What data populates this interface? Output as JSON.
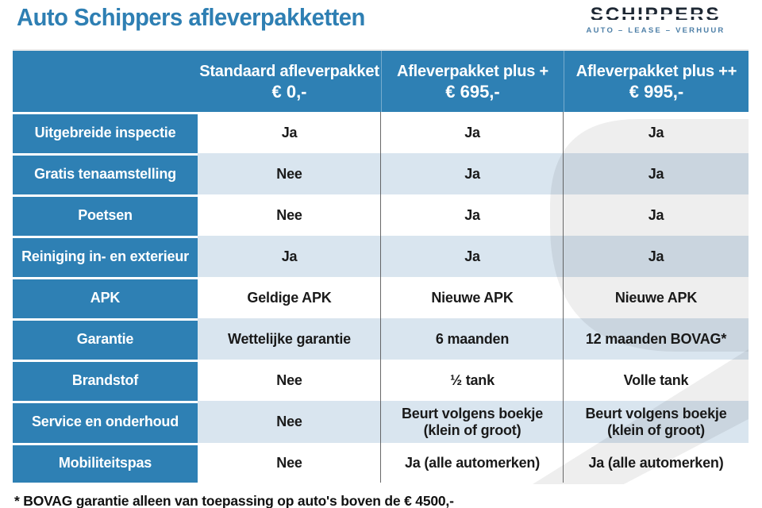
{
  "page": {
    "title": "Auto Schippers afleverpakketten"
  },
  "logo": {
    "brand": "SCHIPPERS",
    "tagline": "AUTO – LEASE – VERHUUR"
  },
  "table": {
    "columns": [
      {
        "label": "",
        "price": ""
      },
      {
        "label": "Standaard afleverpakket",
        "price": "€ 0,-"
      },
      {
        "label": "Afleverpakket plus +",
        "price": "€ 695,-"
      },
      {
        "label": "Afleverpakket plus ++",
        "price": "€ 995,-"
      }
    ],
    "rows": [
      {
        "feature": "Uitgebreide inspectie",
        "values": [
          "Ja",
          "Ja",
          "Ja"
        ]
      },
      {
        "feature": "Gratis tenaamstelling",
        "values": [
          "Nee",
          "Ja",
          "Ja"
        ]
      },
      {
        "feature": "Poetsen",
        "values": [
          "Nee",
          "Ja",
          "Ja"
        ]
      },
      {
        "feature": "Reiniging in- en exterieur",
        "values": [
          "Ja",
          "Ja",
          "Ja"
        ]
      },
      {
        "feature": "APK",
        "values": [
          "Geldige APK",
          "Nieuwe APK",
          "Nieuwe APK"
        ]
      },
      {
        "feature": "Garantie",
        "values": [
          "Wettelijke garantie",
          "6 maanden",
          "12 maanden BOVAG*"
        ]
      },
      {
        "feature": "Brandstof",
        "values": [
          "Nee",
          "½ tank",
          "Volle tank"
        ]
      },
      {
        "feature": "Service en onderhoud",
        "values": [
          "Nee",
          "Beurt volgens boekje (klein of groot)",
          "Beurt volgens boekje (klein of groot)"
        ]
      },
      {
        "feature": "Mobiliteitspas",
        "values": [
          "Nee",
          "Ja (alle automerken)",
          "Ja (alle automerken)"
        ]
      }
    ]
  },
  "footnote": "* BOVAG garantie alleen van toepassing op auto's boven de € 4500,-",
  "colors": {
    "primary_blue": "#2e80b4",
    "row_alt_blue": "#d9e5ef",
    "text_dark": "#1a1a1a",
    "logo_dark": "#1e2834",
    "logo_blue": "#4d7fa7",
    "divider_gray": "#4f4f4f",
    "watermark_gray": "#ededed"
  }
}
